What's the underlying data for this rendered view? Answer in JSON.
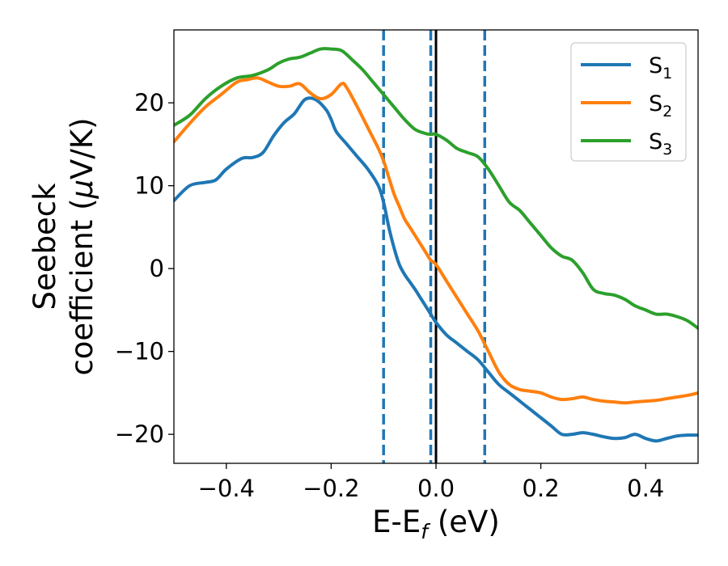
{
  "chart_data": {
    "type": "line",
    "xlabel": "E-E",
    "xlabel_sub": "f",
    "xlabel_unit": " (eV)",
    "ylabel_line1": "Seebeck",
    "ylabel_line2": "coefficient  (",
    "ylabel_mu": "μ",
    "ylabel_unit": "V/K)",
    "xlim": [
      -0.5,
      0.5
    ],
    "ylim": [
      -23.5,
      28.8
    ],
    "x_ticks": [
      -0.4,
      -0.2,
      0.0,
      0.2,
      0.4
    ],
    "x_tick_labels": [
      "−0.4",
      "−0.2",
      "0.0",
      "0.2",
      "0.4"
    ],
    "y_ticks": [
      -20,
      -10,
      0,
      10,
      20
    ],
    "y_tick_labels": [
      "−20",
      "−10",
      "0",
      "10",
      "20"
    ],
    "grid": false,
    "legend_position": "top-right",
    "vlines": [
      {
        "x": -0.1,
        "style": "dashed",
        "color": "#1f77b4"
      },
      {
        "x": -0.01,
        "style": "dashed",
        "color": "#1f77b4"
      },
      {
        "x": 0.0,
        "style": "solid",
        "color": "#000000"
      },
      {
        "x": 0.093,
        "style": "dashed",
        "color": "#1f77b4"
      }
    ],
    "series": [
      {
        "name": "S",
        "sub": "1",
        "color": "#1f77b4",
        "x": [
          -0.5,
          -0.47,
          -0.44,
          -0.42,
          -0.4,
          -0.37,
          -0.35,
          -0.33,
          -0.31,
          -0.29,
          -0.27,
          -0.25,
          -0.23,
          -0.21,
          -0.2,
          -0.19,
          -0.17,
          -0.15,
          -0.13,
          -0.11,
          -0.1,
          -0.09,
          -0.08,
          -0.07,
          -0.06,
          -0.05,
          -0.04,
          -0.03,
          -0.02,
          -0.01,
          0.0,
          0.02,
          0.04,
          0.06,
          0.08,
          0.1,
          0.12,
          0.14,
          0.16,
          0.18,
          0.2,
          0.22,
          0.24,
          0.26,
          0.28,
          0.3,
          0.32,
          0.34,
          0.36,
          0.38,
          0.4,
          0.42,
          0.44,
          0.46,
          0.48,
          0.5
        ],
        "y": [
          8.2,
          10,
          10.4,
          10.7,
          12,
          13.3,
          13.4,
          14,
          16,
          17.6,
          18.7,
          20.4,
          20.4,
          19.2,
          18,
          16.5,
          15,
          13.5,
          12,
          10,
          8,
          5,
          2.5,
          0.5,
          -0.7,
          -1.6,
          -2.5,
          -3.5,
          -4.5,
          -5.5,
          -6.5,
          -8,
          -9,
          -10,
          -11,
          -12.5,
          -14,
          -15,
          -16,
          -17,
          -18,
          -19,
          -20,
          -20,
          -19.8,
          -20,
          -20.3,
          -20.5,
          -20.4,
          -20,
          -20.5,
          -20.8,
          -20.5,
          -20.2,
          -20.1,
          -20.1
        ]
      },
      {
        "name": "S",
        "sub": "2",
        "color": "#ff7f0e",
        "x": [
          -0.5,
          -0.47,
          -0.44,
          -0.41,
          -0.38,
          -0.36,
          -0.34,
          -0.32,
          -0.3,
          -0.28,
          -0.26,
          -0.24,
          -0.22,
          -0.2,
          -0.18,
          -0.17,
          -0.15,
          -0.13,
          -0.11,
          -0.1,
          -0.09,
          -0.08,
          -0.07,
          -0.06,
          -0.05,
          -0.04,
          -0.03,
          -0.02,
          -0.01,
          0.0,
          0.02,
          0.04,
          0.06,
          0.08,
          0.1,
          0.12,
          0.14,
          0.16,
          0.18,
          0.2,
          0.22,
          0.24,
          0.26,
          0.28,
          0.3,
          0.32,
          0.34,
          0.36,
          0.38,
          0.4,
          0.42,
          0.44,
          0.46,
          0.48,
          0.5
        ],
        "y": [
          15.3,
          17.5,
          19.5,
          21,
          22.5,
          22.8,
          23,
          22.5,
          22,
          22,
          22.3,
          21.2,
          20.5,
          21,
          22.3,
          21.8,
          19.5,
          17,
          14.5,
          13,
          11,
          9,
          7.5,
          6,
          5,
          4,
          3,
          2,
          1,
          0.5,
          -1.5,
          -3.5,
          -5.5,
          -7.5,
          -10,
          -12.5,
          -14,
          -14.6,
          -14.8,
          -15,
          -15.5,
          -15.8,
          -15.7,
          -15.5,
          -15.8,
          -16,
          -16.1,
          -16.2,
          -16.1,
          -16,
          -15.9,
          -15.7,
          -15.5,
          -15.3,
          -15
        ]
      },
      {
        "name": "S",
        "sub": "3",
        "color": "#2ca02c",
        "x": [
          -0.5,
          -0.47,
          -0.44,
          -0.41,
          -0.38,
          -0.35,
          -0.32,
          -0.3,
          -0.28,
          -0.26,
          -0.24,
          -0.22,
          -0.2,
          -0.18,
          -0.16,
          -0.14,
          -0.12,
          -0.1,
          -0.08,
          -0.06,
          -0.04,
          -0.02,
          -0.01,
          0.0,
          0.02,
          0.04,
          0.06,
          0.08,
          0.1,
          0.12,
          0.14,
          0.16,
          0.18,
          0.2,
          0.22,
          0.24,
          0.26,
          0.28,
          0.3,
          0.32,
          0.34,
          0.36,
          0.38,
          0.4,
          0.42,
          0.44,
          0.46,
          0.48,
          0.5
        ],
        "y": [
          17.3,
          18.5,
          20.5,
          22,
          23,
          23.3,
          24,
          24.8,
          25.3,
          25.5,
          26,
          26.5,
          26.5,
          26.3,
          25.2,
          24,
          22.5,
          21,
          19.5,
          18,
          16.8,
          16.3,
          16.2,
          16.2,
          15.5,
          14.5,
          14,
          13.5,
          12,
          10,
          8,
          7,
          5.5,
          4,
          2.5,
          1.5,
          1,
          -0.5,
          -2.5,
          -3,
          -3.2,
          -3.7,
          -4.5,
          -5,
          -5.5,
          -5.5,
          -5.8,
          -6.3,
          -7.2
        ]
      }
    ]
  }
}
